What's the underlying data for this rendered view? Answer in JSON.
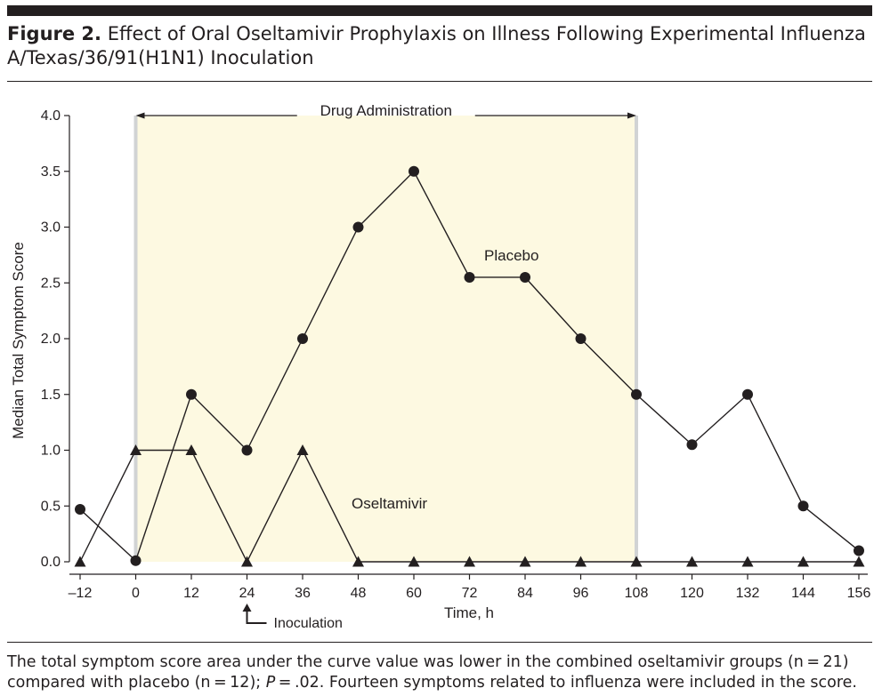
{
  "figure": {
    "label": "Figure 2.",
    "title": "Effect of Oral Oseltamivir Prophylaxis on Illness Following Experimental Influenza A/Texas/36/91(H1N1) Inoculation"
  },
  "caption": {
    "part1": "The total symptom score area under the curve value was lower in the combined oseltamivir groups (n = 21) compared with placebo (n = 12); ",
    "p_symbol": "P",
    "part2": " = .02. Fourteen symptoms related to influenza were included in the score."
  },
  "chart_data": {
    "type": "line",
    "xlabel": "Time, h",
    "ylabel": "Median Total Symptom Score",
    "xlim": [
      -12,
      156
    ],
    "ylim": [
      0,
      4
    ],
    "x_ticks": [
      -12,
      0,
      12,
      24,
      36,
      48,
      60,
      72,
      84,
      96,
      108,
      120,
      132,
      144,
      156
    ],
    "x_tick_labels": [
      "–12",
      "0",
      "12",
      "24",
      "36",
      "48",
      "60",
      "72",
      "84",
      "96",
      "108",
      "120",
      "132",
      "144",
      "156"
    ],
    "y_ticks": [
      0,
      0.5,
      1,
      1.5,
      2,
      2.5,
      3,
      3.5,
      4
    ],
    "y_tick_labels": [
      "0.0",
      "0.5",
      "1.0",
      "1.5",
      "2.0",
      "2.5",
      "3.0",
      "3.5",
      "4.0"
    ],
    "grid": false,
    "shaded_region": {
      "label": "Drug Administration",
      "x_start": 0,
      "x_end": 108,
      "color": "#fdf9e1",
      "edge_color": "#d1d3d4"
    },
    "annotation": {
      "label": "Inoculation",
      "x": 24
    },
    "series": [
      {
        "name": "Placebo",
        "marker": "circle",
        "x": [
          -12,
          0,
          12,
          24,
          36,
          48,
          60,
          72,
          84,
          96,
          108,
          120,
          132,
          144,
          156
        ],
        "y": [
          0.47,
          0.01,
          1.5,
          1.0,
          2.0,
          3.0,
          3.5,
          2.55,
          2.55,
          2.0,
          1.5,
          1.05,
          1.5,
          0.5,
          0.1
        ]
      },
      {
        "name": "Oseltamivir",
        "marker": "triangle",
        "x": [
          -12,
          0,
          12,
          24,
          36,
          48,
          60,
          72,
          84,
          96,
          108,
          120,
          132,
          144,
          156
        ],
        "y": [
          0,
          1.0,
          1.0,
          0,
          1.0,
          0,
          0,
          0,
          0,
          0,
          0,
          0,
          0,
          0,
          0
        ]
      }
    ]
  }
}
